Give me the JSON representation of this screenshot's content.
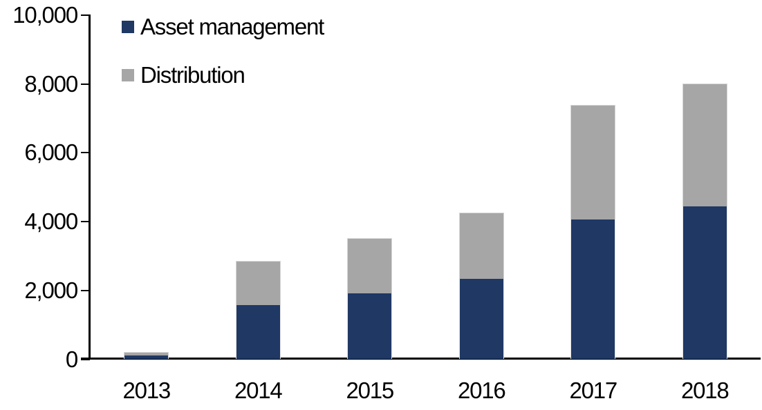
{
  "chart_data": {
    "type": "bar",
    "stacked": true,
    "title": "",
    "xlabel": "",
    "ylabel": "",
    "categories": [
      "2013",
      "2014",
      "2015",
      "2016",
      "2017",
      "2018"
    ],
    "series": [
      {
        "name": "Asset management",
        "color": "#1F3864",
        "values": [
          110,
          1570,
          1900,
          2320,
          4060,
          4430
        ]
      },
      {
        "name": "Distribution",
        "color": "#A6A6A6",
        "values": [
          100,
          1280,
          1620,
          1940,
          3330,
          3570
        ]
      }
    ],
    "totals": [
      210,
      2850,
      3520,
      4260,
      7390,
      8000
    ],
    "ylim": [
      0,
      10000
    ],
    "yticks": [
      {
        "value": 0,
        "label": "0"
      },
      {
        "value": 2000,
        "label": "2,000"
      },
      {
        "value": 4000,
        "label": "4,000"
      },
      {
        "value": 6000,
        "label": "6,000"
      },
      {
        "value": 8000,
        "label": "8,000"
      },
      {
        "value": 10000,
        "label": "10,000"
      }
    ],
    "grid": false,
    "legend_position": "top-left-inside",
    "axis_color": "#000000",
    "background_color": "#FFFFFF"
  }
}
